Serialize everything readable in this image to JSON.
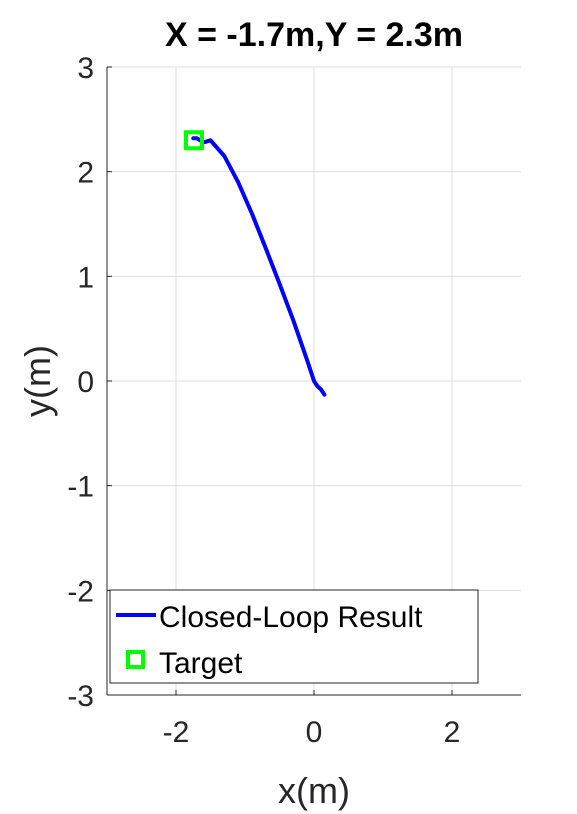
{
  "chart_data": {
    "type": "line",
    "title": "X = -1.7m,Y = 2.3m",
    "xlabel": "x(m)",
    "ylabel": "y(m)",
    "xlim": [
      -3,
      3
    ],
    "ylim": [
      -3,
      3
    ],
    "xticks": [
      -2,
      0,
      2
    ],
    "yticks": [
      -3,
      -2,
      -1,
      0,
      1,
      2,
      3
    ],
    "xtick_labels": [
      "-2",
      "0",
      "2"
    ],
    "ytick_labels": [
      "-3",
      "-2",
      "-1",
      "0",
      "1",
      "2",
      "3"
    ],
    "grid": true,
    "legend_position": "bottom",
    "series": [
      {
        "name": "Closed-Loop Result",
        "kind": "line",
        "color": "#0000ff",
        "x": [
          0.15,
          0.1,
          0.05,
          0.0,
          -0.1,
          -0.3,
          -0.5,
          -0.7,
          -0.9,
          -1.1,
          -1.3,
          -1.5,
          -1.6,
          -1.7,
          -1.75
        ],
        "y": [
          -0.13,
          -0.08,
          -0.05,
          0.0,
          0.2,
          0.58,
          0.93,
          1.27,
          1.6,
          1.9,
          2.15,
          2.3,
          2.28,
          2.32,
          2.32
        ]
      },
      {
        "name": "Target",
        "kind": "marker",
        "marker": "square",
        "color": "#00ff00",
        "x": [
          -1.74
        ],
        "y": [
          2.3
        ]
      }
    ]
  }
}
